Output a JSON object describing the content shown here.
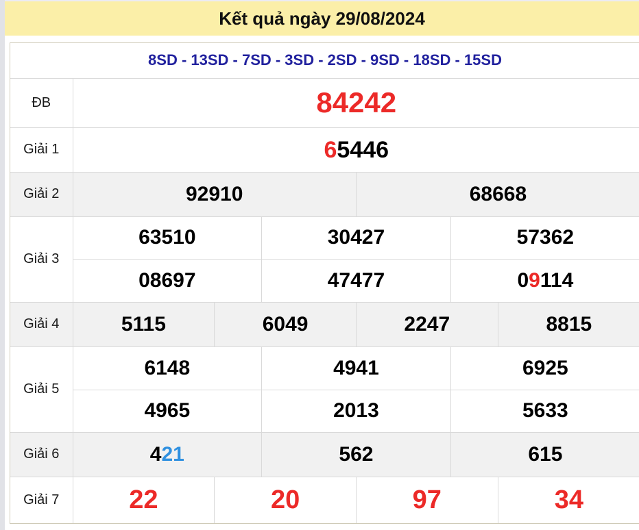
{
  "header": {
    "title": "Kết quả ngày 29/08/2024"
  },
  "stats_line": "8SD - 13SD - 7SD - 3SD - 2SD - 9SD - 18SD - 15SD",
  "colors": {
    "banner_bg": "#fbefa8",
    "stats_navy": "#21219e",
    "highlight_red": "#ec2a28",
    "highlight_blue": "#2f90e0",
    "alt_row_bg": "#f1f1f1",
    "border_outer": "#cfcbb8",
    "border_inner": "#d9d9d9"
  },
  "prizes": {
    "db": {
      "label": "ĐB",
      "value": "84242"
    },
    "g1": {
      "label": "Giải 1",
      "highlight": "6",
      "rest": "5446"
    },
    "g2": {
      "label": "Giải 2",
      "values": [
        "92910",
        "68668"
      ]
    },
    "g3": {
      "label": "Giải 3",
      "row1": [
        "63510",
        "30427",
        "57362"
      ],
      "row2": [
        "08697",
        "47477"
      ],
      "row2_last": {
        "pre": "0",
        "highlight": "9",
        "post": "114"
      }
    },
    "g4": {
      "label": "Giải 4",
      "values": [
        "5115",
        "6049",
        "2247",
        "8815"
      ]
    },
    "g5": {
      "label": "Giải 5",
      "row1": [
        "6148",
        "4941",
        "6925"
      ],
      "row2": [
        "4965",
        "2013",
        "5633"
      ]
    },
    "g6": {
      "label": "Giải 6",
      "first": {
        "pre": "4",
        "highlight": "21"
      },
      "values": [
        "562",
        "615"
      ]
    },
    "g7": {
      "label": "Giải 7",
      "values": [
        "22",
        "20",
        "97",
        "34"
      ]
    }
  }
}
